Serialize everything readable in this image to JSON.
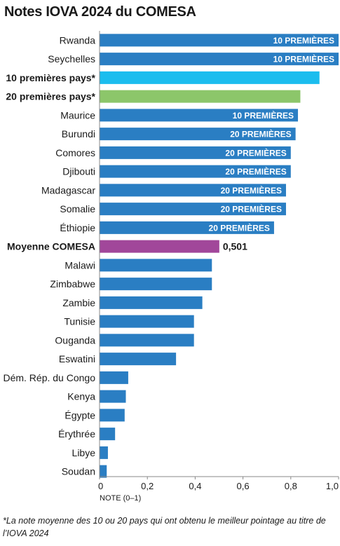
{
  "title": "Notes IOVA 2024 du COMESA",
  "footnote": "*La note moyenne des 10 ou 20 pays qui ont obtenu le meilleur pointage au titre de l’IOVA 2024",
  "colors": {
    "country": "#2a7ec3",
    "top10_avg": "#1bbdee",
    "top20_avg": "#8cc66a",
    "comesa_avg": "#a1479a",
    "text": "#1a1a1a",
    "axis": "#888888"
  },
  "chart_data": {
    "type": "bar",
    "orientation": "horizontal",
    "title": "Notes IOVA 2024 du COMESA",
    "xlabel": "NOTE (0–1)",
    "xlim": [
      0,
      1.0
    ],
    "xticks": [
      "0",
      "0,2",
      "0,4",
      "0,6",
      "0,8",
      "1,0"
    ],
    "xtick_values": [
      0,
      0.2,
      0.4,
      0.6,
      0.8,
      1.0
    ],
    "grid": false,
    "categories": [
      "Rwanda",
      "Seychelles",
      "10 premières pays*",
      "20 premières pays*",
      "Maurice",
      "Burundi",
      "Comores",
      "Djibouti",
      "Madagascar",
      "Somalie",
      "Éthiopie",
      "Moyenne COMESA",
      "Malawi",
      "Zimbabwe",
      "Zambie",
      "Tunisie",
      "Ouganda",
      "Eswatini",
      "Dém. Rép. du Congo",
      "Kenya",
      "Égypte",
      "Érythrée",
      "Libye",
      "Soudan"
    ],
    "values": [
      1.0,
      1.0,
      0.92,
      0.84,
      0.83,
      0.82,
      0.8,
      0.8,
      0.78,
      0.78,
      0.73,
      0.501,
      0.47,
      0.47,
      0.43,
      0.395,
      0.395,
      0.32,
      0.12,
      0.11,
      0.105,
      0.065,
      0.035,
      0.03
    ],
    "kinds": [
      "country",
      "country",
      "top10_avg",
      "top20_avg",
      "country",
      "country",
      "country",
      "country",
      "country",
      "country",
      "country",
      "comesa_avg",
      "country",
      "country",
      "country",
      "country",
      "country",
      "country",
      "country",
      "country",
      "country",
      "country",
      "country",
      "country"
    ],
    "bold_labels": [
      false,
      false,
      true,
      true,
      false,
      false,
      false,
      false,
      false,
      false,
      false,
      true,
      false,
      false,
      false,
      false,
      false,
      false,
      false,
      false,
      false,
      false,
      false,
      false
    ],
    "bar_labels": [
      "10 PREMIÈRES",
      "10 PREMIÈRES",
      "",
      "",
      "10 PREMIÈRES",
      "20 PREMIÈRES",
      "20 PREMIÈRES",
      "20 PREMIÈRES",
      "20 PREMIÈRES",
      "20 PREMIÈRES",
      "20 PREMIÈRES",
      "",
      "",
      "",
      "",
      "",
      "",
      "",
      "",
      "",
      "",
      "",
      "",
      ""
    ],
    "value_labels": [
      "",
      "",
      "",
      "",
      "",
      "",
      "",
      "",
      "",
      "",
      "",
      "0,501",
      "",
      "",
      "",
      "",
      "",
      "",
      "",
      "",
      "",
      "",
      "",
      ""
    ]
  }
}
